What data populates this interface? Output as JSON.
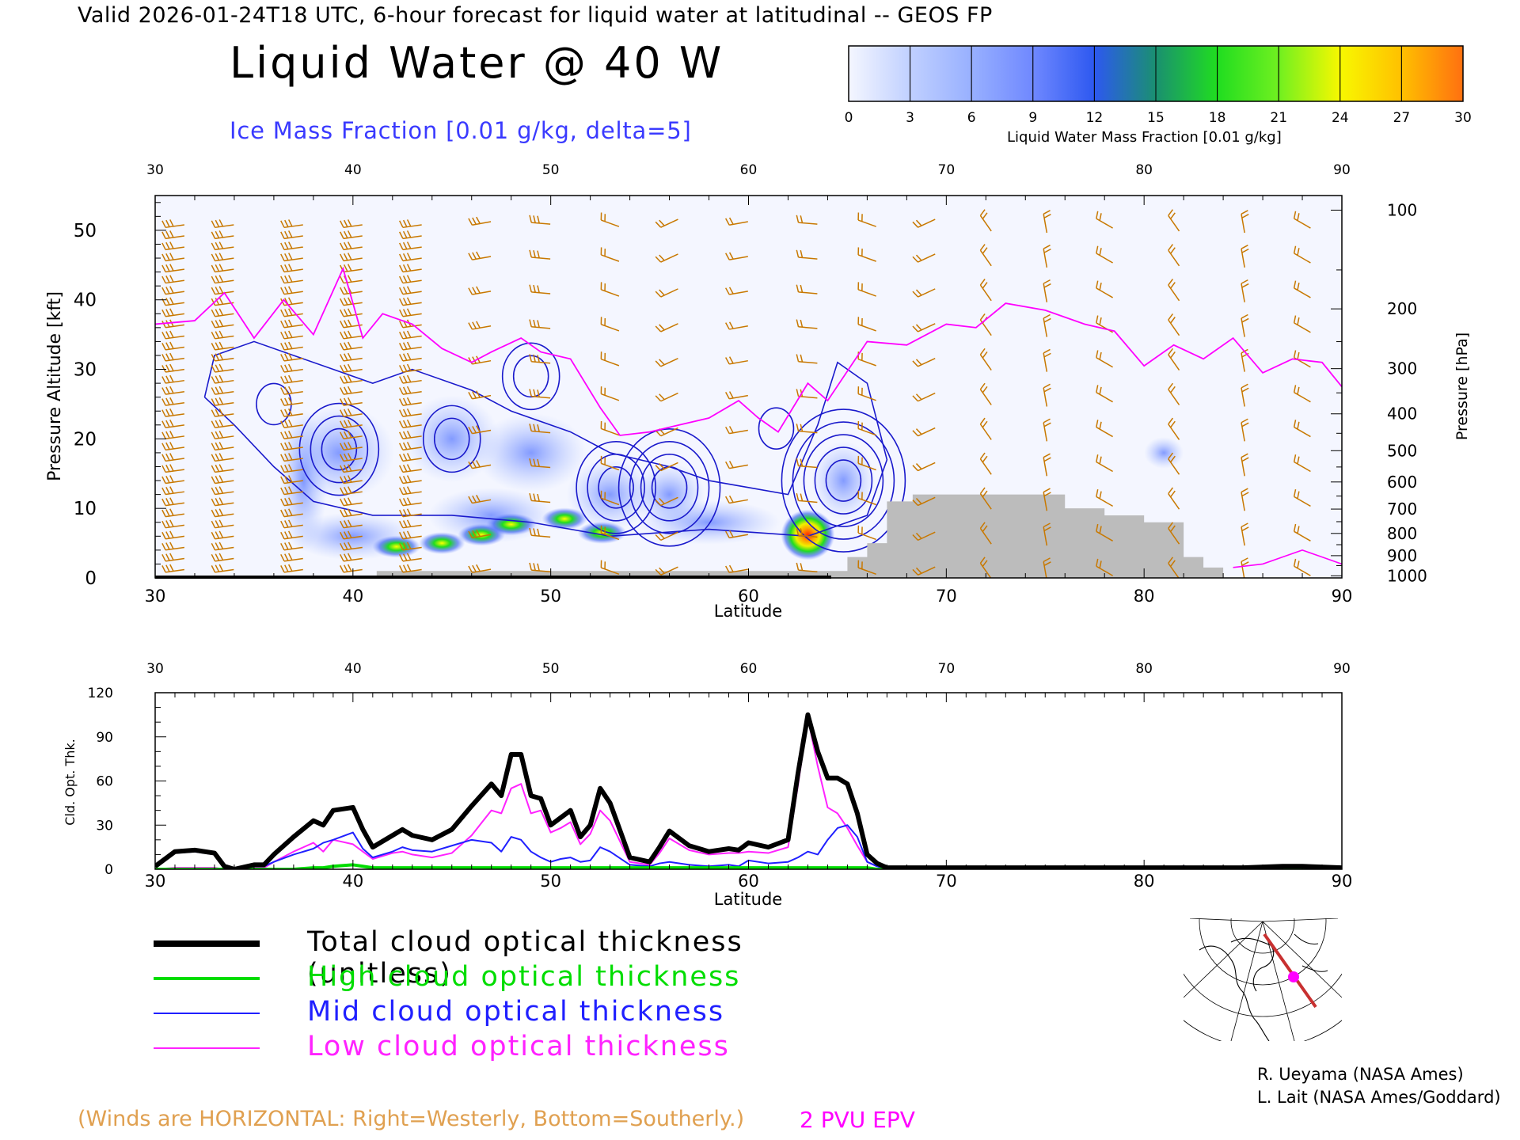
{
  "header": {
    "valid_text": "Valid 2026-01-24T18 UTC, 6-hour forecast for liquid water at latitudinal -- GEOS FP",
    "main_title": "Liquid Water @ 40 W",
    "ice_note": "Ice Mass Fraction [0.01 g/kg, delta=5]"
  },
  "colorbar": {
    "label": "Liquid Water Mass Fraction [0.01 g/kg]",
    "ticks": [
      "0",
      "3",
      "6",
      "9",
      "12",
      "15",
      "18",
      "21",
      "24",
      "27",
      "30"
    ],
    "colors": [
      "#f4f6ff",
      "#c0d0ff",
      "#98b0ff",
      "#6f88ff",
      "#2d58f0",
      "#1a9070",
      "#20dd20",
      "#70f020",
      "#f8f800",
      "#ffc000",
      "#ff7010"
    ]
  },
  "panel_labels": {
    "upper_ylabel_left": "Pressure Altitude [kft]",
    "upper_ylabel_right": "Pressure [hPa]",
    "xlabel": "Latitude",
    "lower_ylabel": "Cld. Opt. Thk."
  },
  "legend": [
    {
      "label": "Total cloud optical thickness (unitless)",
      "color": "#000000",
      "width": 8
    },
    {
      "label": "High cloud optical thickness",
      "color": "#00dd00",
      "width": 4
    },
    {
      "label": "Mid cloud optical thickness",
      "color": "#2020ff",
      "width": 2
    },
    {
      "label": "Low cloud optical thickness",
      "color": "#ff22ff",
      "width": 2
    }
  ],
  "notes": {
    "winds": "(Winds are HORIZONTAL: Right=Westerly, Bottom=Southerly.)",
    "pvu": "2 PVU EPV"
  },
  "credits": [
    "R. Ueyama (NASA Ames)",
    "L. Lait (NASA Ames/Goddard)"
  ],
  "colors": {
    "barb": "#c87800",
    "pvu": "#ff00ff",
    "ice_contour": "#1a1acc",
    "terrain": "#bcbcbc"
  },
  "chart_data": [
    {
      "type": "heatmap",
      "title": "Liquid Water @ 40 W",
      "xlabel": "Latitude",
      "ylabel": "Pressure Altitude [kft]",
      "ylabel_right": "Pressure [hPa]",
      "xlim": [
        30,
        90
      ],
      "ylim": [
        0,
        55
      ],
      "x_ticks": [
        30,
        40,
        50,
        60,
        70,
        80,
        90
      ],
      "y_ticks": [
        0,
        10,
        20,
        30,
        40,
        50
      ],
      "pressure_ticks": [
        {
          "hPa": "100",
          "kft": 52.9
        },
        {
          "hPa": "200",
          "kft": 38.7
        },
        {
          "hPa": "300",
          "kft": 30.1
        },
        {
          "hPa": "400",
          "kft": 23.6
        },
        {
          "hPa": "500",
          "kft": 18.3
        },
        {
          "hPa": "600",
          "kft": 13.8
        },
        {
          "hPa": "700",
          "kft": 9.9
        },
        {
          "hPa": "800",
          "kft": 6.4
        },
        {
          "hPa": "900",
          "kft": 3.2
        },
        {
          "hPa": "1000",
          "kft": 0.3
        }
      ],
      "liquid_water_blobs": [
        {
          "lat": 42.2,
          "kft": 4.5,
          "peak": 14
        },
        {
          "lat": 44.5,
          "kft": 5.0,
          "peak": 12
        },
        {
          "lat": 46.5,
          "kft": 6.2,
          "peak": 13
        },
        {
          "lat": 48.0,
          "kft": 7.7,
          "peak": 16
        },
        {
          "lat": 50.7,
          "kft": 8.5,
          "peak": 11
        },
        {
          "lat": 52.6,
          "kft": 6.5,
          "peak": 15
        },
        {
          "lat": 63.0,
          "kft": 6.2,
          "peak": 30
        }
      ],
      "ice_contours": [
        {
          "lat": 39.3,
          "kft": 18.5,
          "levels": 3
        },
        {
          "lat": 36.0,
          "kft": 25.0,
          "levels": 1
        },
        {
          "lat": 45.0,
          "kft": 20.0,
          "levels": 2
        },
        {
          "lat": 49.0,
          "kft": 29.0,
          "levels": 2
        },
        {
          "lat": 53.3,
          "kft": 13.0,
          "levels": 3
        },
        {
          "lat": 56.0,
          "kft": 13.0,
          "levels": 4
        },
        {
          "lat": 64.8,
          "kft": 14.0,
          "levels": 5
        },
        {
          "lat": 61.4,
          "kft": 21.5,
          "levels": 1
        }
      ],
      "pvu_line": {
        "lat": [
          30,
          32,
          33.5,
          35,
          36.5,
          38,
          39.5,
          40.5,
          41.5,
          43,
          44.5,
          46,
          47,
          48.5,
          49.5,
          51,
          52.5,
          53.5,
          55,
          56.5,
          58,
          59.5,
          60.5,
          61.5,
          63,
          64,
          66,
          68,
          70,
          71.5,
          73,
          75,
          77,
          78.5,
          80,
          81.5,
          83,
          84.5,
          86,
          87.5,
          89,
          90
        ],
        "kft": [
          36.5,
          37,
          41,
          34.5,
          40,
          35,
          44.5,
          34.5,
          38,
          36.5,
          33,
          31,
          32.5,
          34.5,
          32.5,
          31.5,
          24.5,
          20.5,
          21,
          22,
          23,
          25.5,
          23,
          21,
          28,
          25.5,
          34,
          33.5,
          36.5,
          36,
          39.5,
          38.5,
          36.5,
          35.5,
          30.5,
          33.5,
          31.5,
          34.5,
          29.5,
          31.5,
          31,
          27.5
        ]
      },
      "terrain": {
        "lat": [
          41.2,
          41.2,
          65.0,
          65.0,
          66.0,
          66.0,
          67.0,
          67.0,
          68.3,
          68.3,
          76.0,
          76.0,
          78.0,
          78.0,
          80.0,
          80.0,
          82.0,
          82.0,
          83.0,
          83.0,
          84.0,
          84.0
        ],
        "kft": [
          0,
          1,
          1,
          3,
          3,
          5,
          5,
          11,
          11,
          12,
          12,
          10,
          10,
          9,
          9,
          8,
          8,
          3,
          3,
          1.5,
          1.5,
          0
        ]
      },
      "wind_barb_columns_lat": [
        31,
        33.5,
        37,
        40,
        43,
        46.5,
        49.5,
        53,
        56,
        59.5,
        63,
        66,
        69,
        72,
        75,
        78,
        81.5,
        85,
        88
      ]
    },
    {
      "type": "line",
      "xlabel": "Latitude",
      "ylabel": "Cld. Opt. Thk.",
      "xlim": [
        30,
        90
      ],
      "ylim": [
        0,
        120
      ],
      "x_ticks": [
        30,
        40,
        50,
        60,
        70,
        80,
        90
      ],
      "y_ticks": [
        0,
        30,
        60,
        90,
        120
      ],
      "x": [
        30,
        31,
        32,
        33,
        33.5,
        34,
        35,
        35.5,
        36,
        37,
        38,
        38.5,
        39,
        40,
        40.5,
        41,
        42,
        42.5,
        43,
        44,
        45,
        46,
        47,
        47.5,
        48,
        48.5,
        49,
        49.5,
        50,
        50.5,
        51,
        51.5,
        52,
        52.5,
        53,
        54,
        55,
        55.5,
        56,
        57,
        58,
        59,
        59.5,
        60,
        61,
        62,
        62.5,
        63,
        63.5,
        64,
        64.5,
        65,
        65.5,
        66,
        66.5,
        67,
        70,
        75,
        80,
        82,
        83,
        85,
        87,
        88,
        90
      ],
      "series": [
        {
          "name": "Total cloud optical thickness (unitless)",
          "values": [
            2,
            12,
            13,
            11,
            2,
            0,
            3,
            3,
            10,
            22,
            33,
            30,
            40,
            42,
            27,
            15,
            23,
            27,
            23,
            20,
            27,
            43,
            58,
            50,
            78,
            78,
            50,
            48,
            30,
            35,
            40,
            22,
            30,
            55,
            45,
            8,
            5,
            15,
            26,
            16,
            12,
            14,
            13,
            18,
            15,
            20,
            65,
            105,
            80,
            62,
            62,
            58,
            38,
            10,
            4,
            1,
            1,
            1,
            1,
            1,
            1,
            1,
            2,
            2,
            1
          ]
        },
        {
          "name": "High cloud optical thickness",
          "values": [
            0,
            0,
            0,
            0,
            0,
            0,
            0,
            0,
            0,
            0,
            1,
            1,
            2,
            3,
            2,
            1,
            1,
            1,
            1,
            1,
            1,
            1,
            1,
            1,
            1,
            1,
            1,
            1,
            1,
            1,
            1,
            1,
            1,
            1,
            1,
            1,
            1,
            1,
            1,
            1,
            1,
            1,
            1,
            1,
            1,
            1,
            1,
            1,
            1,
            1,
            1,
            1,
            1,
            1,
            0,
            0,
            0,
            0,
            0,
            0,
            0,
            0,
            0,
            0,
            0
          ]
        },
        {
          "name": "Mid cloud optical thickness",
          "values": [
            2,
            11,
            12,
            10,
            2,
            0,
            2,
            2,
            5,
            10,
            14,
            18,
            20,
            25,
            14,
            8,
            12,
            15,
            13,
            12,
            16,
            20,
            18,
            12,
            22,
            20,
            12,
            8,
            5,
            7,
            8,
            5,
            6,
            15,
            12,
            3,
            2,
            4,
            5,
            3,
            2,
            3,
            2,
            6,
            4,
            5,
            8,
            12,
            10,
            20,
            28,
            30,
            22,
            5,
            2,
            0,
            0,
            0,
            0,
            2,
            1,
            1,
            1,
            1,
            0
          ]
        },
        {
          "name": "Low cloud optical thickness",
          "values": [
            0,
            1,
            1,
            1,
            0,
            0,
            1,
            1,
            5,
            12,
            18,
            12,
            20,
            17,
            12,
            7,
            11,
            12,
            10,
            8,
            11,
            23,
            40,
            38,
            55,
            58,
            38,
            40,
            25,
            28,
            32,
            17,
            24,
            40,
            33,
            5,
            3,
            11,
            21,
            13,
            10,
            11,
            11,
            12,
            11,
            15,
            57,
            103,
            70,
            42,
            38,
            28,
            16,
            5,
            2,
            0,
            0,
            0,
            0,
            0,
            0,
            0,
            1,
            1,
            0
          ]
        }
      ]
    }
  ]
}
